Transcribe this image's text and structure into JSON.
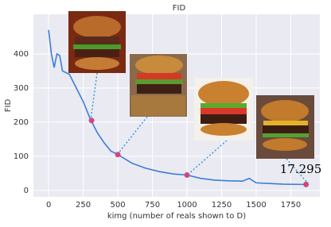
{
  "chart_data": {
    "type": "line",
    "title": "FID",
    "x_label": "kimg (number of reals shown to D)",
    "y_label": "FID",
    "series": [
      {
        "color": "#3b7dd8",
        "x": [
          0,
          20,
          40,
          60,
          80,
          100,
          150,
          200,
          250,
          300,
          350,
          400,
          450,
          500,
          600,
          700,
          800,
          900,
          1000,
          1100,
          1200,
          1300,
          1400,
          1450,
          1500,
          1600,
          1700,
          1860
        ],
        "values": [
          470,
          400,
          360,
          400,
          395,
          350,
          340,
          300,
          260,
          210,
          170,
          140,
          115,
          105,
          80,
          65,
          55,
          48,
          45,
          35,
          30,
          28,
          27,
          35,
          22,
          20,
          18,
          17.295
        ]
      }
    ],
    "points": {
      "color": "#d6457a",
      "x": [
        310,
        500,
        1000,
        1860
      ],
      "values": [
        205,
        105,
        45,
        17.295
      ]
    },
    "annotation": "17.295",
    "xlim": [
      -110,
      1960
    ],
    "xticks": [
      0,
      250,
      500,
      750,
      1000,
      1250,
      1500,
      1750
    ],
    "ylim": [
      -19,
      516
    ],
    "yticks": [
      0,
      100,
      200,
      300,
      400
    ],
    "grid": true
  }
}
